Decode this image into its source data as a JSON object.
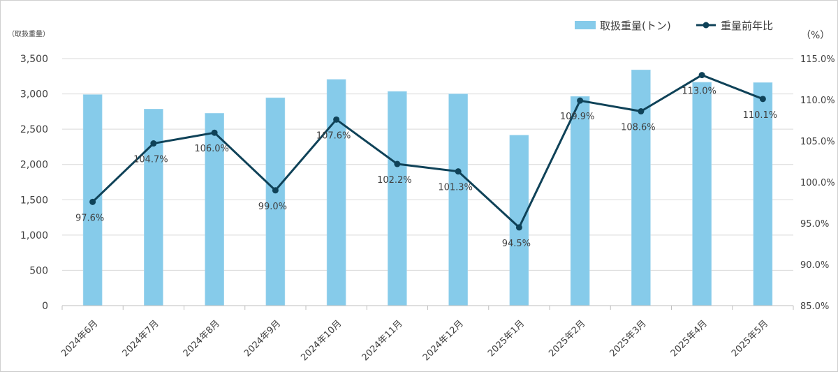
{
  "chart_data": {
    "type": "bar+line",
    "categories": [
      "2024年6月",
      "2024年7月",
      "2024年8月",
      "2024年9月",
      "2024年10月",
      "2024年11月",
      "2024年12月",
      "2025年1月",
      "2025年2月",
      "2025年3月",
      "2025年4月",
      "2025年5月"
    ],
    "series": [
      {
        "name": "取扱重量(トン)",
        "type": "bar",
        "axis": "left",
        "color": "#86CBEA",
        "values": [
          2990,
          2785,
          2725,
          2945,
          3205,
          3035,
          3000,
          2415,
          2965,
          3340,
          3165,
          3160
        ]
      },
      {
        "name": "重量前年比",
        "type": "line",
        "axis": "right",
        "color": "#0F4258",
        "values": [
          97.6,
          104.7,
          106.0,
          99.0,
          107.6,
          102.2,
          101.3,
          94.5,
          109.9,
          108.6,
          113.0,
          110.1
        ],
        "labels": [
          "97.6%",
          "104.7%",
          "106.0%",
          "99.0%",
          "107.6%",
          "102.2%",
          "101.3%",
          "94.5%",
          "109.9%",
          "108.6%",
          "113.0%",
          "110.1%"
        ]
      }
    ],
    "y_left": {
      "label": "（取扱重量）",
      "ylim": [
        0,
        3500
      ],
      "ticks": [
        0,
        500,
        1000,
        1500,
        2000,
        2500,
        3000,
        3500
      ],
      "tick_labels": [
        "0",
        "500",
        "1,000",
        "1,500",
        "2,000",
        "2,500",
        "3,000",
        "3,500"
      ]
    },
    "y_right": {
      "label": "（%）",
      "ylim": [
        85,
        115
      ],
      "ticks": [
        85,
        90,
        95,
        100,
        105,
        110,
        115
      ],
      "tick_labels": [
        "85.0%",
        "90.0%",
        "95.0%",
        "100.0%",
        "105.0%",
        "110.0%",
        "115.0%"
      ]
    },
    "grid": true,
    "legend_position": "top-right"
  }
}
